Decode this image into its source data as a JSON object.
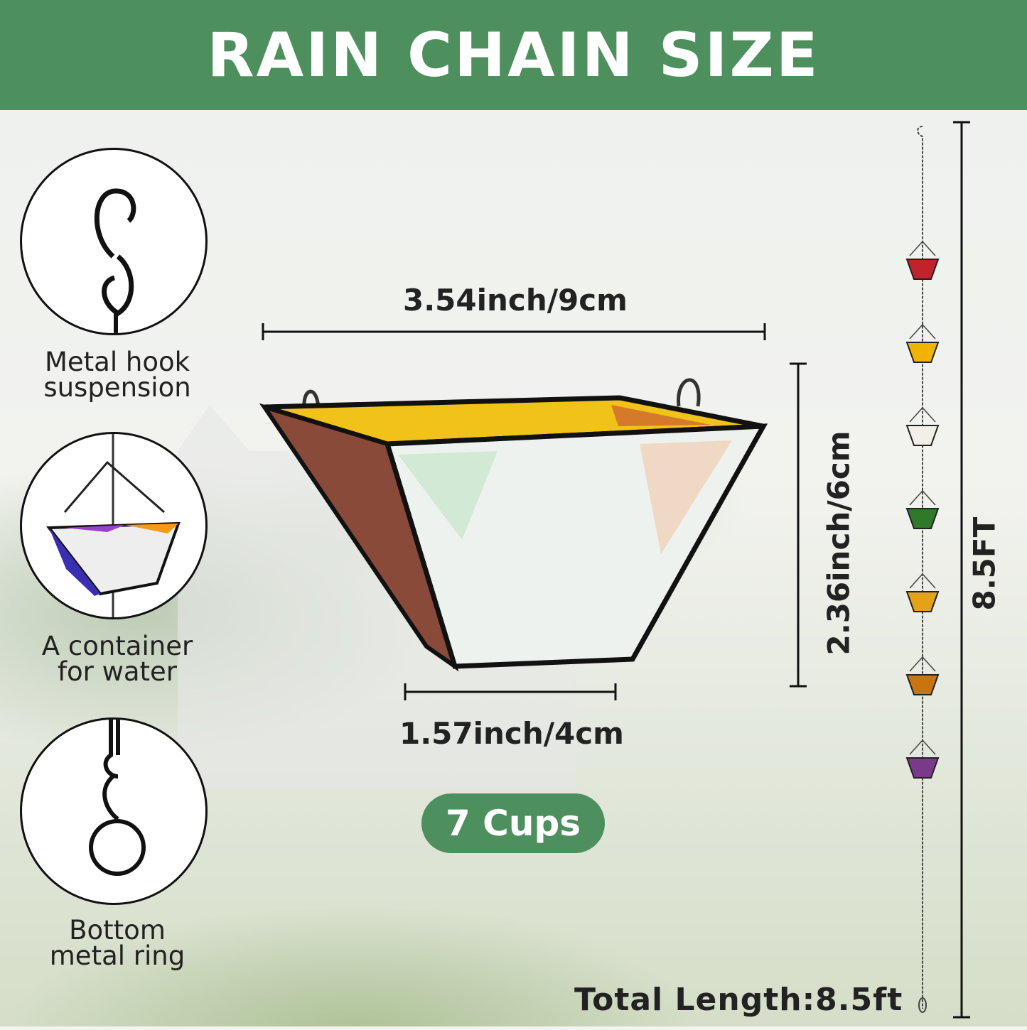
{
  "header": {
    "title": "RAIN CHAIN SIZE",
    "bg_color": "#4e8f5e"
  },
  "features": [
    {
      "icon": "metal-hook-icon",
      "label_line1": "Metal hook",
      "label_line2": "suspension"
    },
    {
      "icon": "water-cup-icon",
      "label_line1": "A container",
      "label_line2": "for water"
    },
    {
      "icon": "metal-ring-icon",
      "label_line1": "Bottom",
      "label_line2": "metal ring"
    }
  ],
  "dimensions": {
    "top_width": "3.54inch/9cm",
    "height": "2.36inch/6cm",
    "bottom_width": "1.57inch/4cm",
    "chain_length": "8.5FT"
  },
  "badge": {
    "label": "7 Cups",
    "color": "#4e8f5e"
  },
  "total_length": "Total Length:8.5ft",
  "chain_cup_colors": [
    "#c0232c",
    "#f0b400",
    "#f2efe6",
    "#2e7a2a",
    "#e2a21a",
    "#c87410",
    "#7a3a8a"
  ]
}
